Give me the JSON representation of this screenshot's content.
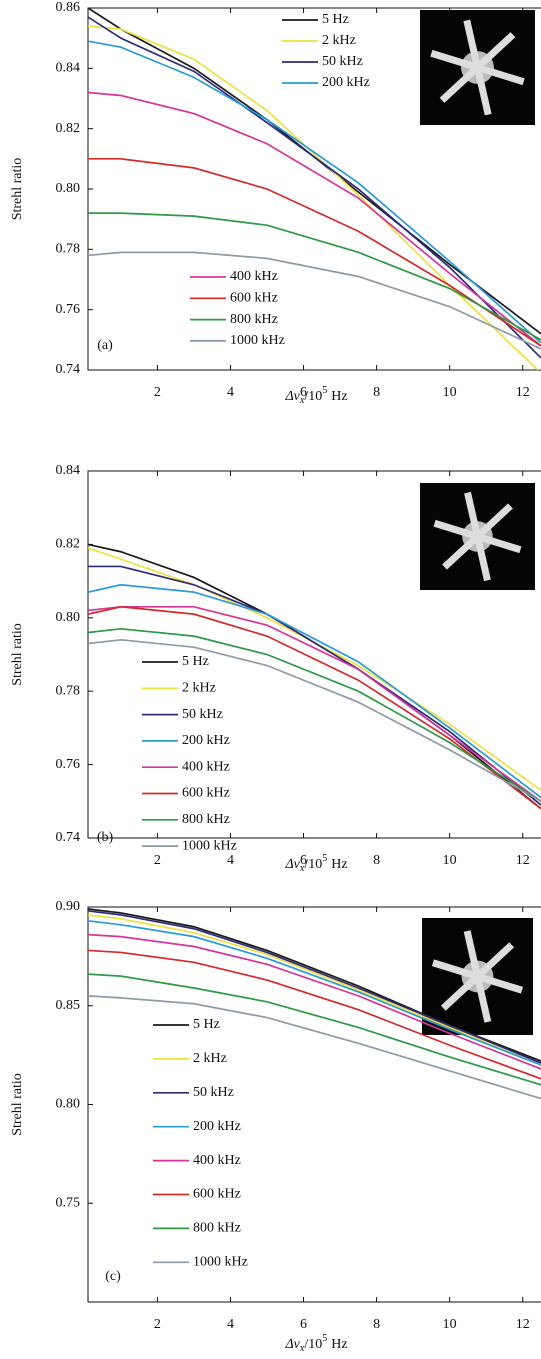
{
  "chart_data": [
    {
      "type": "line",
      "panel_label": "(a)",
      "ylabel": "Strehl ratio",
      "xlabel": {
        "text": "Δν",
        "sub": "x",
        "rest": "/10",
        "sup": "5",
        "unit": "Hz"
      },
      "x": [
        0.1,
        1,
        3,
        5,
        7.5,
        10,
        12.5
      ],
      "xlim": [
        0.1,
        12.5
      ],
      "xticks": [
        2,
        4,
        6,
        8,
        10,
        12
      ],
      "ylim": [
        0.74,
        0.86
      ],
      "yticks": [
        0.74,
        0.76,
        0.78,
        {
          "value": 0.8,
          "label": "0.80"
        },
        0.82,
        0.84,
        0.86
      ],
      "series": [
        {
          "name": "5 Hz",
          "color": "#1a1a1a",
          "values": [
            0.86,
            0.853,
            0.84,
            0.823,
            0.799,
            0.775,
            0.752
          ]
        },
        {
          "name": "2 kHz",
          "color": "#f0e040",
          "values": [
            0.854,
            0.853,
            0.843,
            0.826,
            0.798,
            0.768,
            0.739
          ]
        },
        {
          "name": "50 kHz",
          "color": "#2c2c7c",
          "values": [
            0.857,
            0.85,
            0.839,
            0.822,
            0.8,
            0.774,
            0.744
          ]
        },
        {
          "name": "200 kHz",
          "color": "#2a9ad8",
          "values": [
            0.849,
            0.847,
            0.837,
            0.823,
            0.802,
            0.776,
            0.749
          ]
        },
        {
          "name": "400 kHz",
          "color": "#d4359a",
          "values": [
            0.832,
            0.831,
            0.825,
            0.815,
            0.797,
            0.772,
            0.748
          ]
        },
        {
          "name": "600 kHz",
          "color": "#d42a2a",
          "values": [
            0.81,
            0.81,
            0.807,
            0.8,
            0.786,
            0.768,
            0.748
          ]
        },
        {
          "name": "800 kHz",
          "color": "#2e9a45",
          "values": [
            0.792,
            0.792,
            0.791,
            0.788,
            0.779,
            0.767,
            0.75
          ]
        },
        {
          "name": "1000 kHz",
          "color": "#9099a8",
          "values": [
            0.778,
            0.779,
            0.779,
            0.777,
            0.771,
            0.761,
            0.747
          ]
        }
      ]
    },
    {
      "type": "line",
      "panel_label": "(b)",
      "ylabel": "Strehl ratio",
      "xlabel": {
        "text": "Δν",
        "sub": "x",
        "rest": "/10",
        "sup": "5",
        "unit": "Hz"
      },
      "x": [
        0.1,
        1,
        3,
        5,
        7.5,
        10,
        12.5
      ],
      "xlim": [
        0.1,
        12.5
      ],
      "xticks": [
        2,
        4,
        6,
        8,
        10,
        12
      ],
      "ylim": [
        0.74,
        0.84
      ],
      "yticks": [
        0.74,
        0.76,
        0.78,
        {
          "value": 0.8,
          "label": "0.80"
        },
        0.82,
        0.84
      ],
      "series": [
        {
          "name": "5 Hz",
          "color": "#1a1a1a",
          "values": [
            0.82,
            0.818,
            0.811,
            0.801,
            0.786,
            0.768,
            0.748
          ]
        },
        {
          "name": "2 kHz",
          "color": "#f0e040",
          "values": [
            0.819,
            0.816,
            0.809,
            0.8,
            0.787,
            0.771,
            0.753
          ]
        },
        {
          "name": "50 kHz",
          "color": "#2c2c7c",
          "values": [
            0.814,
            0.814,
            0.809,
            0.801,
            0.786,
            0.769,
            0.749
          ]
        },
        {
          "name": "200 kHz",
          "color": "#2a9ad8",
          "values": [
            0.807,
            0.809,
            0.807,
            0.801,
            0.788,
            0.77,
            0.751
          ]
        },
        {
          "name": "400 kHz",
          "color": "#d4359a",
          "values": [
            0.802,
            0.803,
            0.803,
            0.798,
            0.786,
            0.768,
            0.75
          ]
        },
        {
          "name": "600 kHz",
          "color": "#d42a2a",
          "values": [
            0.801,
            0.803,
            0.801,
            0.795,
            0.783,
            0.767,
            0.748
          ]
        },
        {
          "name": "800 kHz",
          "color": "#2e9a45",
          "values": [
            0.796,
            0.797,
            0.795,
            0.79,
            0.78,
            0.766,
            0.75
          ]
        },
        {
          "name": "1000 kHz",
          "color": "#9099a8",
          "values": [
            0.793,
            0.794,
            0.792,
            0.787,
            0.777,
            0.764,
            0.75
          ]
        }
      ]
    },
    {
      "type": "line",
      "panel_label": "(c)",
      "ylabel": "Strehl ratio",
      "xlabel": {
        "text": "Δν",
        "sub": "x",
        "rest": "/10",
        "sup": "5",
        "unit": "Hz"
      },
      "x": [
        0.1,
        1,
        3,
        5,
        7.5,
        10,
        12.5
      ],
      "xlim": [
        0.1,
        12.5
      ],
      "xticks": [
        2,
        4,
        6,
        8,
        10,
        12
      ],
      "ylim": [
        0.7,
        0.9
      ],
      "yticks": [
        0.75,
        {
          "value": 0.8,
          "label": "0.80"
        },
        0.85,
        {
          "value": 0.9,
          "label": "0.90"
        }
      ],
      "series": [
        {
          "name": "5 Hz",
          "color": "#1a1a1a",
          "values": [
            0.899,
            0.897,
            0.89,
            0.878,
            0.86,
            0.84,
            0.822
          ]
        },
        {
          "name": "2 kHz",
          "color": "#f0e040",
          "values": [
            0.896,
            0.894,
            0.887,
            0.876,
            0.858,
            0.839,
            0.821
          ]
        },
        {
          "name": "50 kHz",
          "color": "#2c2c7c",
          "values": [
            0.898,
            0.896,
            0.889,
            0.877,
            0.859,
            0.84,
            0.821
          ]
        },
        {
          "name": "200 kHz",
          "color": "#2a9ad8",
          "values": [
            0.893,
            0.891,
            0.885,
            0.874,
            0.857,
            0.838,
            0.82
          ]
        },
        {
          "name": "400 kHz",
          "color": "#d4359a",
          "values": [
            0.886,
            0.885,
            0.88,
            0.871,
            0.855,
            0.836,
            0.818
          ]
        },
        {
          "name": "600 kHz",
          "color": "#d42a2a",
          "values": [
            0.878,
            0.877,
            0.872,
            0.863,
            0.848,
            0.83,
            0.813
          ]
        },
        {
          "name": "800 kHz",
          "color": "#2e9a45",
          "values": [
            0.866,
            0.865,
            0.859,
            0.852,
            0.839,
            0.824,
            0.81
          ]
        },
        {
          "name": "1000 kHz",
          "color": "#9099a8",
          "values": [
            0.855,
            0.854,
            0.851,
            0.844,
            0.831,
            0.817,
            0.803
          ]
        }
      ]
    }
  ]
}
